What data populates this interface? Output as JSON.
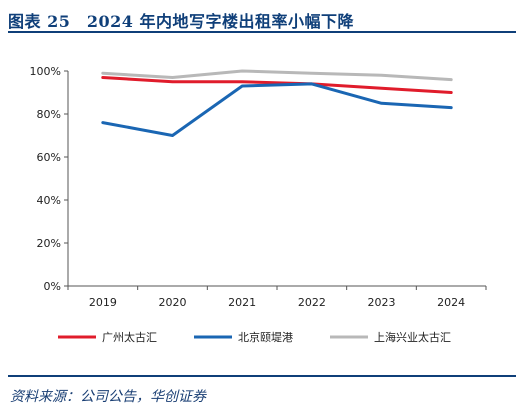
{
  "header": {
    "title": "图表 25　2024 年内地写字楼出租率小幅下降"
  },
  "chart_data": {
    "type": "line",
    "x": [
      "2019",
      "2020",
      "2021",
      "2022",
      "2023",
      "2024"
    ],
    "series": [
      {
        "name": "广州太古汇",
        "color": "#e01c2b",
        "values": [
          97,
          95,
          95,
          94,
          92,
          90
        ]
      },
      {
        "name": "北京颐堤港",
        "color": "#1a66b3",
        "values": [
          76,
          70,
          93,
          94,
          85,
          83
        ]
      },
      {
        "name": "上海兴业太古汇",
        "color": "#b8b8b8",
        "values": [
          99,
          97,
          100,
          99,
          98,
          96
        ]
      }
    ],
    "ylim": [
      0,
      100
    ],
    "yticks": [
      "0%",
      "20%",
      "40%",
      "60%",
      "80%",
      "100%"
    ],
    "grid": false,
    "legend": "bottom"
  },
  "footer": {
    "source": "资料来源：公司公告，华创证券"
  }
}
